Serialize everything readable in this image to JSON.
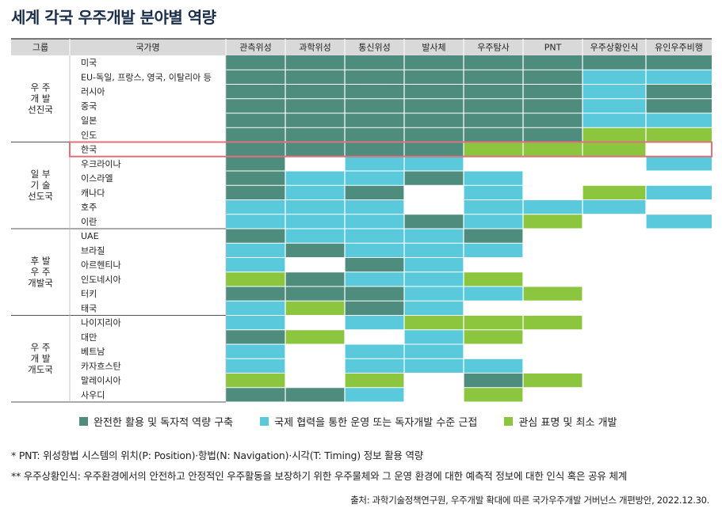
{
  "title": "세계 각국 우주개발 분야별 역량",
  "colors": {
    "full": "#4e8c7e",
    "coop": "#5bc9dc",
    "interest": "#8cc63f",
    "header_bg": "#d9d9d9",
    "highlight": "#e0707a"
  },
  "chart_data": {
    "type": "table",
    "title": "세계 각국 우주개발 분야별 역량",
    "group_header": "그룹",
    "country_header": "국가명",
    "columns": [
      "관측위성",
      "과학위성",
      "통신위성",
      "발사체",
      "우주탐사",
      "PNT",
      "우주상황인식",
      "유인우주비행"
    ],
    "legend_codes": {
      "F": "full",
      "C": "coop",
      "I": "interest",
      "-": "none"
    },
    "highlighted_country": "한국",
    "groups": [
      {
        "label": "우 주\n개 발\n선진국",
        "rows": [
          {
            "country": "미국",
            "cells": [
              "F",
              "F",
              "F",
              "F",
              "F",
              "F",
              "F",
              "F"
            ]
          },
          {
            "country": "EU-독일, 프랑스, 영국, 이탈리아 등",
            "cells": [
              "F",
              "F",
              "F",
              "F",
              "F",
              "F",
              "C",
              "C"
            ]
          },
          {
            "country": "러시아",
            "cells": [
              "F",
              "F",
              "F",
              "F",
              "F",
              "F",
              "C",
              "F"
            ]
          },
          {
            "country": "중국",
            "cells": [
              "F",
              "F",
              "F",
              "F",
              "F",
              "F",
              "C",
              "F"
            ]
          },
          {
            "country": "일본",
            "cells": [
              "F",
              "F",
              "F",
              "F",
              "F",
              "F",
              "C",
              "C"
            ]
          },
          {
            "country": "인도",
            "cells": [
              "F",
              "F",
              "F",
              "F",
              "F",
              "F",
              "I",
              "I"
            ]
          }
        ]
      },
      {
        "label": "일 부\n기 술\n선도국",
        "rows": [
          {
            "country": "한국",
            "cells": [
              "F",
              "F",
              "F",
              "F",
              "I",
              "I",
              "I",
              "-"
            ]
          },
          {
            "country": "우크라이나",
            "cells": [
              "F",
              "-",
              "C",
              "C",
              "-",
              "-",
              "-",
              "C"
            ]
          },
          {
            "country": "이스라엘",
            "cells": [
              "F",
              "C",
              "C",
              "F",
              "C",
              "-",
              "-",
              "-"
            ]
          },
          {
            "country": "캐나다",
            "cells": [
              "F",
              "C",
              "F",
              "-",
              "C",
              "-",
              "I",
              "C"
            ]
          },
          {
            "country": "호주",
            "cells": [
              "C",
              "C",
              "C",
              "-",
              "C",
              "C",
              "C",
              "-"
            ]
          },
          {
            "country": "이란",
            "cells": [
              "C",
              "C",
              "C",
              "F",
              "C",
              "I",
              "-",
              "C"
            ]
          }
        ]
      },
      {
        "label": "후 발\n우 주\n개발국",
        "rows": [
          {
            "country": "UAE",
            "cells": [
              "F",
              "C",
              "C",
              "C",
              "F",
              "-",
              "-",
              "-"
            ]
          },
          {
            "country": "브라질",
            "cells": [
              "C",
              "F",
              "C",
              "C",
              "C",
              "-",
              "-",
              "-"
            ]
          },
          {
            "country": "아르헨티나",
            "cells": [
              "C",
              "-",
              "F",
              "C",
              "-",
              "-",
              "-",
              "-"
            ]
          },
          {
            "country": "인도네시아",
            "cells": [
              "I",
              "F",
              "C",
              "C",
              "I",
              "-",
              "-",
              "-"
            ]
          },
          {
            "country": "터키",
            "cells": [
              "F",
              "F",
              "F",
              "C",
              "C",
              "I",
              "-",
              "-"
            ]
          },
          {
            "country": "태국",
            "cells": [
              "C",
              "I",
              "F",
              "C",
              "-",
              "-",
              "-",
              "-"
            ]
          }
        ]
      },
      {
        "label": "우 주\n개 발\n개도국",
        "rows": [
          {
            "country": "나이지리아",
            "cells": [
              "C",
              "-",
              "C",
              "I",
              "I",
              "I",
              "-",
              "-"
            ]
          },
          {
            "country": "대만",
            "cells": [
              "F",
              "I",
              "-",
              "C",
              "I",
              "-",
              "-",
              "-"
            ]
          },
          {
            "country": "베트남",
            "cells": [
              "C",
              "-",
              "C",
              "C",
              "-",
              "-",
              "-",
              "-"
            ]
          },
          {
            "country": "카자흐스탄",
            "cells": [
              "C",
              "-",
              "C",
              "C",
              "C",
              "-",
              "-",
              "-"
            ]
          },
          {
            "country": "말레이시아",
            "cells": [
              "I",
              "-",
              "I",
              "-",
              "F",
              "I",
              "-",
              "-"
            ]
          },
          {
            "country": "사우디",
            "cells": [
              "F",
              "F",
              "C",
              "-",
              "I",
              "-",
              "-",
              "-"
            ]
          }
        ]
      }
    ]
  },
  "legend": [
    {
      "key": "full",
      "label": "완전한 활용 및 독자적 역량 구축"
    },
    {
      "key": "coop",
      "label": "국제 협력을 통한 운영 또는 독자개발 수준 근접"
    },
    {
      "key": "interest",
      "label": "관심 표명 및 최소 개발"
    }
  ],
  "notes": [
    "* PNT: 위성항법 시스템의 위치(P: Position)·항법(N: Navigation)·시각(T: Timing) 정보 활용 역량",
    "** 우주상황인식: 우주환경에서의 안전하고 안정적인 우주활동을 보장하기 위한 우주물체와 그 운영 환경에 대한 예측적 정보에 대한 인식 혹은 공유 체계"
  ],
  "source": "출처: 과학기술정책연구원, 우주개발 확대에 따른 국가우주개발 거버넌스 개편방안, 2022.12.30."
}
